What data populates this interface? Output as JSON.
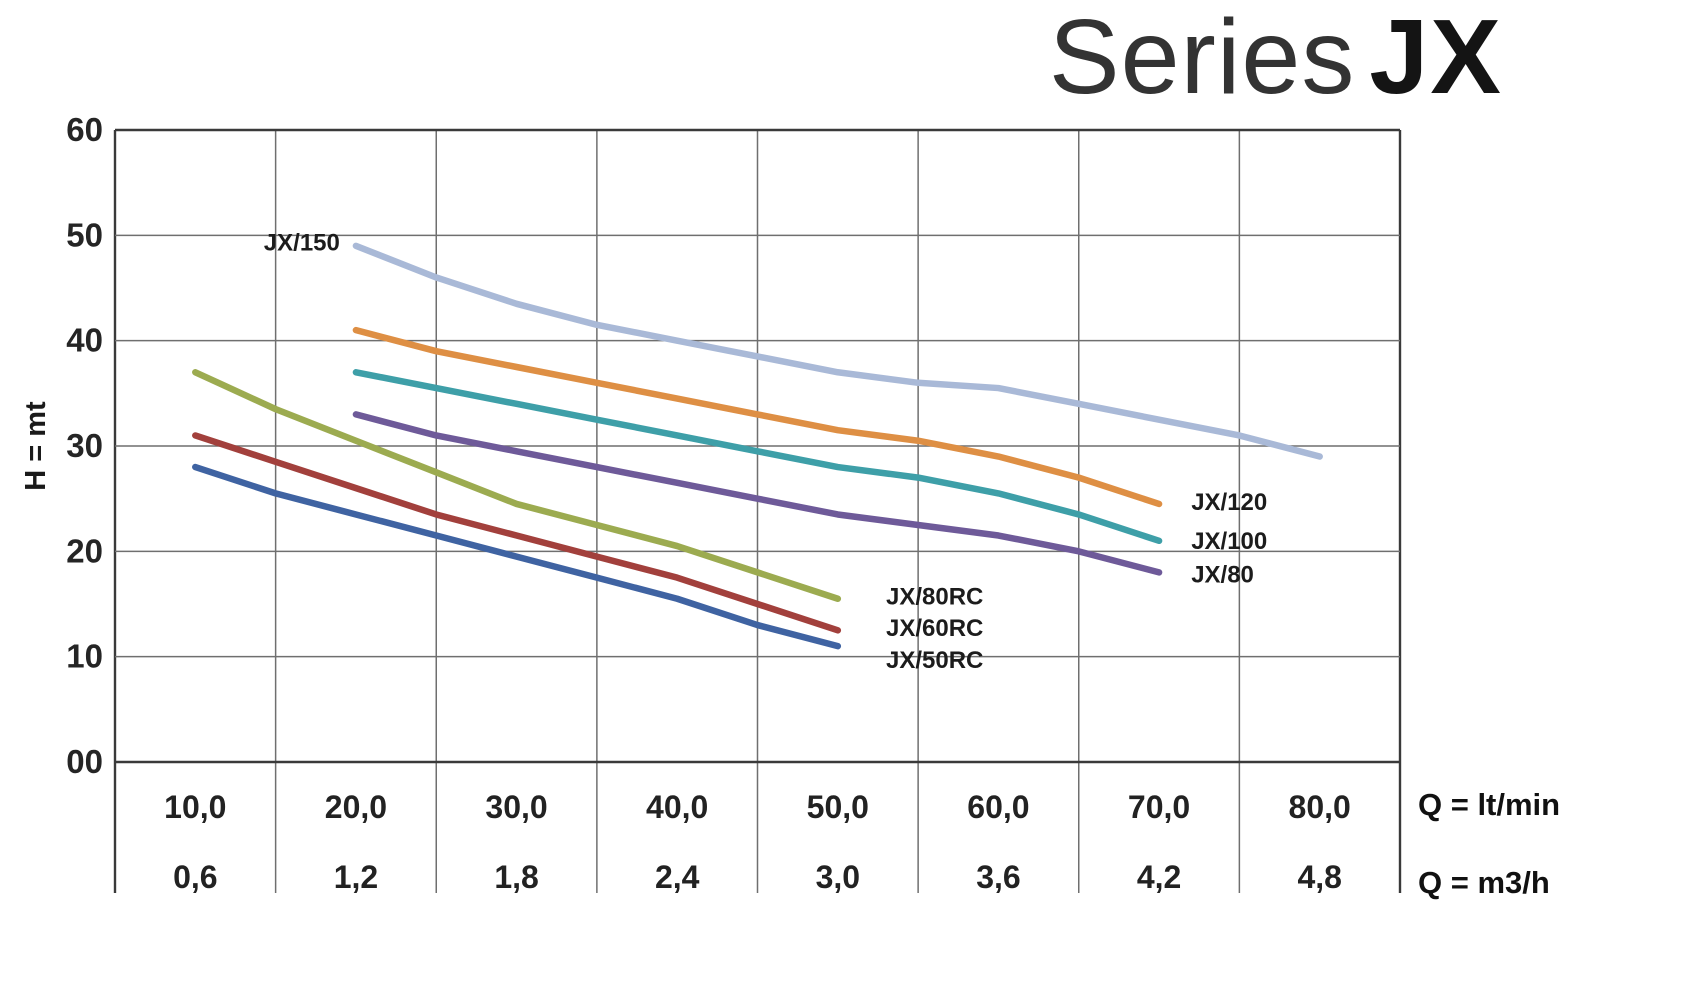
{
  "title": {
    "light": "Series",
    "bold": "JX"
  },
  "chart_data": {
    "type": "line",
    "title": "Series JX",
    "ylabel": "H = mt",
    "grid": true,
    "legend_position": "inline-labels",
    "x_axis": {
      "range": [
        5,
        85
      ],
      "gridline_values": [
        5,
        15,
        25,
        35,
        45,
        55,
        65,
        75,
        85
      ],
      "tick_values": [
        10,
        20,
        30,
        40,
        50,
        60,
        70,
        80
      ],
      "rows": [
        {
          "unit": "Q = lt/min",
          "labels": [
            "10,0",
            "20,0",
            "30,0",
            "40,0",
            "50,0",
            "60,0",
            "70,0",
            "80,0"
          ]
        },
        {
          "unit": "Q = m3/h",
          "labels": [
            "0,6",
            "1,2",
            "1,8",
            "2,4",
            "3,0",
            "3,6",
            "4,2",
            "4,8"
          ]
        }
      ]
    },
    "y_axis": {
      "range": [
        0,
        60
      ],
      "tick_values": [
        0,
        10,
        20,
        30,
        40,
        50,
        60
      ],
      "tick_labels": [
        "00",
        "10",
        "20",
        "30",
        "40",
        "50",
        "60"
      ]
    },
    "series": [
      {
        "name": "JX/150",
        "color": "#a9b9d7",
        "points": [
          [
            20,
            49
          ],
          [
            25,
            46
          ],
          [
            30,
            43.5
          ],
          [
            35,
            41.5
          ],
          [
            40,
            40
          ],
          [
            45,
            38.5
          ],
          [
            50,
            37
          ],
          [
            55,
            36
          ],
          [
            60,
            35.5
          ],
          [
            65,
            34
          ],
          [
            70,
            32.5
          ],
          [
            75,
            31
          ],
          [
            80,
            29
          ]
        ],
        "label": {
          "text": "JX/150",
          "x": 19,
          "y": 49.3,
          "anchor": "end"
        }
      },
      {
        "name": "JX/120",
        "color": "#de8f44",
        "points": [
          [
            20,
            41
          ],
          [
            25,
            39
          ],
          [
            30,
            37.5
          ],
          [
            35,
            36
          ],
          [
            40,
            34.5
          ],
          [
            45,
            33
          ],
          [
            50,
            31.5
          ],
          [
            55,
            30.5
          ],
          [
            60,
            29
          ],
          [
            65,
            27
          ],
          [
            70,
            24.5
          ]
        ],
        "label": {
          "text": "JX/120",
          "x": 72,
          "y": 24.7,
          "anchor": "start"
        }
      },
      {
        "name": "JX/100",
        "color": "#3e9fa8",
        "points": [
          [
            20,
            37
          ],
          [
            25,
            35.5
          ],
          [
            30,
            34
          ],
          [
            35,
            32.5
          ],
          [
            40,
            31
          ],
          [
            45,
            29.5
          ],
          [
            50,
            28
          ],
          [
            55,
            27
          ],
          [
            60,
            25.5
          ],
          [
            65,
            23.5
          ],
          [
            70,
            21
          ]
        ],
        "label": {
          "text": "JX/100",
          "x": 72,
          "y": 21,
          "anchor": "start"
        }
      },
      {
        "name": "JX/80",
        "color": "#6e5a99",
        "points": [
          [
            20,
            33
          ],
          [
            25,
            31
          ],
          [
            30,
            29.5
          ],
          [
            35,
            28
          ],
          [
            40,
            26.5
          ],
          [
            45,
            25
          ],
          [
            50,
            23.5
          ],
          [
            55,
            22.5
          ],
          [
            60,
            21.5
          ],
          [
            65,
            20
          ],
          [
            70,
            18
          ]
        ],
        "label": {
          "text": "JX/80",
          "x": 72,
          "y": 17.8,
          "anchor": "start"
        }
      },
      {
        "name": "JX/80RC",
        "color": "#9cab50",
        "points": [
          [
            10,
            37
          ],
          [
            15,
            33.5
          ],
          [
            20,
            30.5
          ],
          [
            25,
            27.5
          ],
          [
            30,
            24.5
          ],
          [
            35,
            22.5
          ],
          [
            40,
            20.5
          ],
          [
            45,
            18
          ],
          [
            50,
            15.5
          ]
        ],
        "label": {
          "text": "JX/80RC",
          "x": 53,
          "y": 15.7,
          "anchor": "start"
        }
      },
      {
        "name": "JX/60RC",
        "color": "#a2403c",
        "points": [
          [
            10,
            31
          ],
          [
            15,
            28.5
          ],
          [
            20,
            26
          ],
          [
            25,
            23.5
          ],
          [
            30,
            21.5
          ],
          [
            35,
            19.5
          ],
          [
            40,
            17.5
          ],
          [
            45,
            15
          ],
          [
            50,
            12.5
          ]
        ],
        "label": {
          "text": "JX/60RC",
          "x": 53,
          "y": 12.7,
          "anchor": "start"
        }
      },
      {
        "name": "JX/50RC",
        "color": "#3f63a2",
        "points": [
          [
            10,
            28
          ],
          [
            15,
            25.5
          ],
          [
            20,
            23.5
          ],
          [
            25,
            21.5
          ],
          [
            30,
            19.5
          ],
          [
            35,
            17.5
          ],
          [
            40,
            15.5
          ],
          [
            45,
            13
          ],
          [
            50,
            11
          ]
        ],
        "label": {
          "text": "JX/50RC",
          "x": 53,
          "y": 9.7,
          "anchor": "start"
        }
      }
    ]
  }
}
